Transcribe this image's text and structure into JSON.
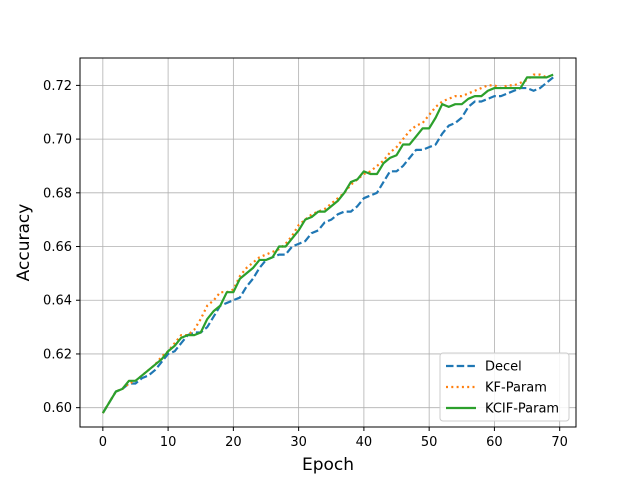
{
  "chart_data": {
    "type": "line",
    "title": "",
    "xlabel": "Epoch",
    "ylabel": "Accuracy",
    "xlim": [
      -3.5,
      72.5
    ],
    "ylim": [
      0.5928,
      0.7302
    ],
    "xticks": [
      0,
      10,
      20,
      30,
      40,
      50,
      60,
      70
    ],
    "yticks": [
      0.6,
      0.62,
      0.64,
      0.66,
      0.68,
      0.7,
      0.72
    ],
    "ytick_labels": [
      "0.60",
      "0.62",
      "0.64",
      "0.66",
      "0.68",
      "0.70",
      "0.72"
    ],
    "grid": true,
    "legend_position": "lower right",
    "x": [
      0,
      1,
      2,
      3,
      4,
      5,
      6,
      7,
      8,
      9,
      10,
      11,
      12,
      13,
      14,
      15,
      16,
      17,
      18,
      19,
      20,
      21,
      22,
      23,
      24,
      25,
      26,
      27,
      28,
      29,
      30,
      31,
      32,
      33,
      34,
      35,
      36,
      37,
      38,
      39,
      40,
      41,
      42,
      43,
      44,
      45,
      46,
      47,
      48,
      49,
      50,
      51,
      52,
      53,
      54,
      55,
      56,
      57,
      58,
      59,
      60,
      61,
      62,
      63,
      64,
      65,
      66,
      67,
      68,
      69
    ],
    "series": [
      {
        "name": "Decel",
        "color": "#1f77b4",
        "style": "dashed",
        "values": [
          0.598,
          0.602,
          0.606,
          0.607,
          0.609,
          0.609,
          0.611,
          0.612,
          0.614,
          0.617,
          0.62,
          0.621,
          0.624,
          0.627,
          0.628,
          0.628,
          0.63,
          0.634,
          0.638,
          0.639,
          0.64,
          0.641,
          0.645,
          0.648,
          0.652,
          0.655,
          0.656,
          0.657,
          0.657,
          0.66,
          0.661,
          0.662,
          0.665,
          0.666,
          0.669,
          0.67,
          0.672,
          0.673,
          0.673,
          0.675,
          0.678,
          0.679,
          0.68,
          0.684,
          0.688,
          0.688,
          0.69,
          0.693,
          0.696,
          0.696,
          0.697,
          0.698,
          0.702,
          0.705,
          0.706,
          0.708,
          0.712,
          0.714,
          0.714,
          0.715,
          0.716,
          0.716,
          0.717,
          0.718,
          0.719,
          0.719,
          0.718,
          0.719,
          0.721,
          0.723
        ]
      },
      {
        "name": "KF-Param",
        "color": "#ff7f0e",
        "style": "dotted",
        "values": [
          0.598,
          0.602,
          0.606,
          0.607,
          0.609,
          0.61,
          0.612,
          0.614,
          0.616,
          0.619,
          0.621,
          0.624,
          0.627,
          0.627,
          0.629,
          0.633,
          0.638,
          0.64,
          0.643,
          0.643,
          0.644,
          0.649,
          0.652,
          0.654,
          0.656,
          0.657,
          0.658,
          0.659,
          0.661,
          0.664,
          0.668,
          0.67,
          0.672,
          0.673,
          0.674,
          0.676,
          0.678,
          0.68,
          0.683,
          0.685,
          0.687,
          0.688,
          0.69,
          0.692,
          0.695,
          0.697,
          0.7,
          0.703,
          0.705,
          0.706,
          0.709,
          0.712,
          0.714,
          0.715,
          0.716,
          0.716,
          0.717,
          0.718,
          0.719,
          0.72,
          0.72,
          0.719,
          0.72,
          0.72,
          0.721,
          0.722,
          0.724,
          0.724,
          0.723,
          0.724
        ]
      },
      {
        "name": "KCIF-Param",
        "color": "#2ca02c",
        "style": "solid",
        "values": [
          0.598,
          0.602,
          0.606,
          0.607,
          0.61,
          0.61,
          0.612,
          0.614,
          0.616,
          0.618,
          0.621,
          0.623,
          0.626,
          0.627,
          0.627,
          0.628,
          0.633,
          0.636,
          0.638,
          0.643,
          0.643,
          0.648,
          0.65,
          0.652,
          0.655,
          0.655,
          0.656,
          0.66,
          0.66,
          0.663,
          0.666,
          0.67,
          0.671,
          0.673,
          0.673,
          0.675,
          0.677,
          0.68,
          0.684,
          0.685,
          0.688,
          0.687,
          0.687,
          0.691,
          0.693,
          0.694,
          0.698,
          0.698,
          0.701,
          0.704,
          0.704,
          0.708,
          0.713,
          0.712,
          0.713,
          0.713,
          0.715,
          0.716,
          0.716,
          0.718,
          0.719,
          0.719,
          0.719,
          0.719,
          0.719,
          0.723,
          0.723,
          0.723,
          0.723,
          0.724
        ]
      }
    ]
  }
}
